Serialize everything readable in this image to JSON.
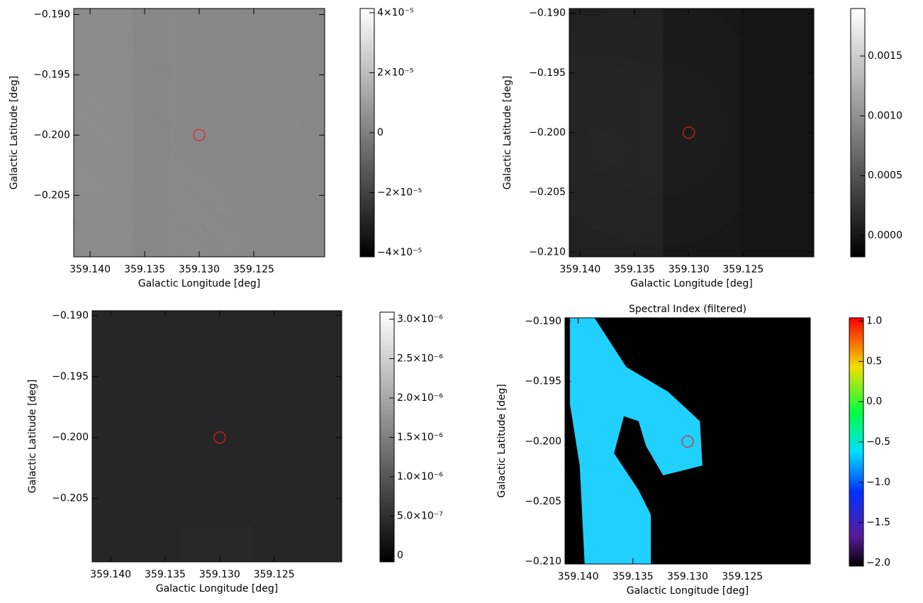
{
  "chart_data": [
    {
      "type": "image",
      "xlabel": "Galactic Longitude [deg]",
      "ylabel": "Galactic Latitude [deg]",
      "xlim": [
        359.1415,
        359.1185
      ],
      "ylim": [
        -0.2101,
        -0.1895
      ],
      "xticks": [
        {
          "value": 359.14,
          "label": "359.140"
        },
        359.135,
        {
          "value": 359.13,
          "label": "359.130"
        },
        359.125
      ],
      "yticks": [
        {
          "value": -0.19,
          "label": "−0.190"
        },
        {
          "value": -0.195,
          "label": "−0.195"
        },
        {
          "value": -0.2,
          "label": "−0.200"
        },
        {
          "value": -0.205,
          "label": "−0.205"
        }
      ],
      "colorbar": {
        "cmap": "gray",
        "lim": [
          -4.14e-05,
          4.14e-05
        ],
        "ticks": [
          {
            "value": 4e-05,
            "label": "4×10⁻⁵"
          },
          {
            "value": 2e-05,
            "label": "2×10⁻⁵"
          },
          0,
          {
            "value": -2e-05,
            "label": "−2×10⁻⁵"
          },
          {
            "value": -4e-05,
            "label": "−4×10⁻⁵"
          }
        ]
      },
      "marker": {
        "x": 359.13,
        "y": -0.2,
        "color": "#e02020"
      }
    },
    {
      "type": "image",
      "xlabel": "Galactic Longitude [deg]",
      "ylabel": "Galactic Latitude [deg]",
      "xlim": [
        359.141,
        359.1185
      ],
      "ylim": [
        -0.2104,
        -0.1896
      ],
      "xticks": [
        {
          "value": 359.14,
          "label": "359.140"
        },
        359.135,
        {
          "value": 359.13,
          "label": "359.130"
        },
        359.125
      ],
      "yticks": [
        {
          "value": -0.19,
          "label": "−0.190"
        },
        {
          "value": -0.195,
          "label": "−0.195"
        },
        {
          "value": -0.2,
          "label": "−0.200"
        },
        {
          "value": -0.205,
          "label": "−0.205"
        },
        {
          "value": -0.21,
          "label": "−0.210"
        }
      ],
      "colorbar": {
        "cmap": "gray",
        "lim": [
          -0.000178,
          0.001897
        ],
        "ticks": [
          0.0015,
          {
            "value": 0.001,
            "label": "0.0010"
          },
          0.0005,
          {
            "value": 0,
            "label": "0.0000"
          }
        ]
      },
      "marker": {
        "x": 359.13,
        "y": -0.2,
        "color": "#e02020"
      }
    },
    {
      "type": "image",
      "xlabel": "Galactic Longitude [deg]",
      "ylabel": "Galactic Latitude [deg]",
      "xlim": [
        359.1417,
        359.1188
      ],
      "ylim": [
        -0.2102,
        -0.1896
      ],
      "xticks": [
        {
          "value": 359.14,
          "label": "359.140"
        },
        359.135,
        {
          "value": 359.13,
          "label": "359.130"
        },
        359.125
      ],
      "yticks": [
        {
          "value": -0.19,
          "label": "−0.190"
        },
        {
          "value": -0.195,
          "label": "−0.195"
        },
        {
          "value": -0.2,
          "label": "−0.200"
        },
        {
          "value": -0.205,
          "label": "−0.205"
        }
      ],
      "colorbar": {
        "cmap": "gray",
        "lim": [
          -8e-08,
          3.09e-06
        ],
        "ticks": [
          {
            "value": 3e-06,
            "label": "3.0×10⁻⁶"
          },
          {
            "value": 2.5e-06,
            "label": "2.5×10⁻⁶"
          },
          {
            "value": 2e-06,
            "label": "2.0×10⁻⁶"
          },
          {
            "value": 1.5e-06,
            "label": "1.5×10⁻⁶"
          },
          {
            "value": 1e-06,
            "label": "1.0×10⁻⁶"
          },
          {
            "value": 5e-07,
            "label": "5.0×10⁻⁷"
          },
          0
        ]
      },
      "marker": {
        "x": 359.13,
        "y": -0.2,
        "color": "#e02020"
      }
    },
    {
      "type": "image",
      "title": "Spectral Index (filtered)",
      "xlabel": "Galactic Longitude [deg]",
      "ylabel": "Galactic Latitude [deg]",
      "xlim": [
        359.1412,
        359.1188
      ],
      "ylim": [
        -0.2102,
        -0.1897
      ],
      "xticks": [
        {
          "value": 359.14,
          "label": "359.140"
        },
        359.135,
        {
          "value": 359.13,
          "label": "359.130"
        },
        359.125
      ],
      "yticks": [
        {
          "value": -0.19,
          "label": "−0.190"
        },
        {
          "value": -0.195,
          "label": "−0.195"
        },
        {
          "value": -0.2,
          "label": "−0.200"
        },
        {
          "value": -0.205,
          "label": "−0.205"
        },
        {
          "value": -0.21,
          "label": "−0.210"
        }
      ],
      "colorbar": {
        "cmap": "rainbow",
        "lim": [
          -2.04,
          1.04
        ],
        "ticks": [
          {
            "value": 1,
            "label": "1.0"
          },
          0.5,
          {
            "value": 0,
            "label": "0.0"
          },
          {
            "value": -0.5,
            "label": "−0.5"
          },
          {
            "value": -1,
            "label": "−1.0"
          },
          {
            "value": -1.5,
            "label": "−1.5"
          },
          {
            "value": -2,
            "label": "−2.0"
          }
        ]
      },
      "marker": {
        "x": 359.13,
        "y": -0.2,
        "color": "#e02020"
      }
    }
  ]
}
